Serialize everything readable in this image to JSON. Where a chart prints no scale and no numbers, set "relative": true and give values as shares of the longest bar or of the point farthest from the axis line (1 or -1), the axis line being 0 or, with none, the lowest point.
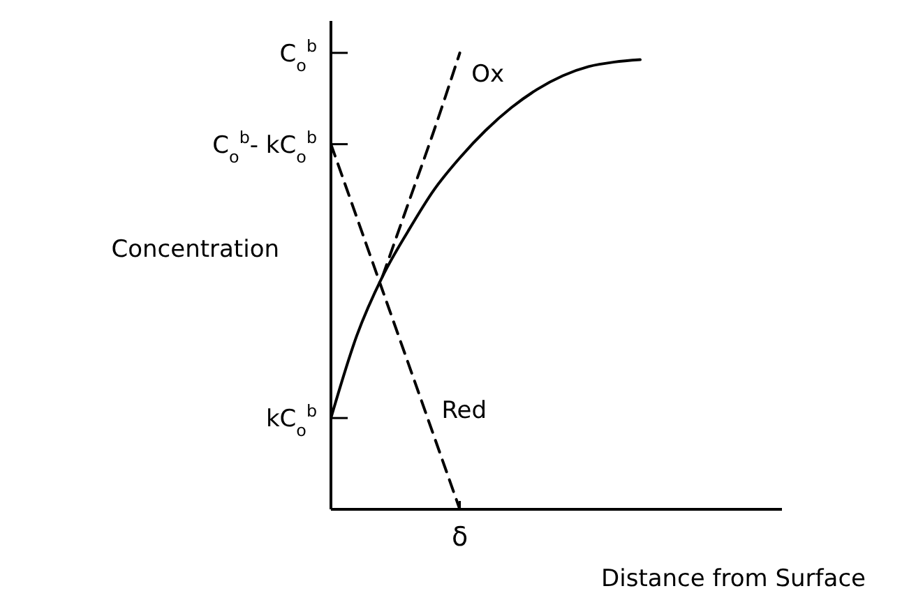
{
  "chart_data": {
    "type": "line",
    "xlabel": "Distance from Surface",
    "ylabel": "Concentration",
    "relative": true,
    "legend": false,
    "marker": "none",
    "categories": [
      null,
      null,
      null,
      null,
      null,
      null,
      null,
      null,
      null,
      null,
      null,
      null,
      null,
      null,
      null,
      null,
      null,
      null
    ],
    "annotations": [
      "C$_{o}$$^{b}$",
      "C$_{o}$$^{b}$- kC$_{o}$$^{b}$",
      "kC$_{o}$$^{b}$",
      "δ"
    ],
    "series": [
      {
        "color": "#000000",
        "line_style": "solid",
        "values": [
          0.2,
          0.38,
          0.51,
          0.61,
          0.7,
          0.77,
          0.83,
          0.88,
          0.92,
          0.95,
          0.97,
          0.98,
          0.985,
          null,
          null,
          null,
          null,
          null
        ]
      },
      {
        "name": "Ox",
        "color": "#000000",
        "line_style": "dashed",
        "values": [
          null,
          null,
          0.51,
          0.67,
          0.83,
          1,
          null,
          null,
          null,
          null,
          null,
          null,
          null,
          null,
          null,
          null,
          null,
          null
        ]
      },
      {
        "name": "Red",
        "color": "#000000",
        "line_style": "dashed",
        "values": [
          0.8,
          0.64,
          0.48,
          0.32,
          0.16,
          0,
          null,
          null,
          null,
          null,
          null,
          null,
          null,
          null,
          null,
          null,
          null,
          null
        ]
      }
    ]
  }
}
